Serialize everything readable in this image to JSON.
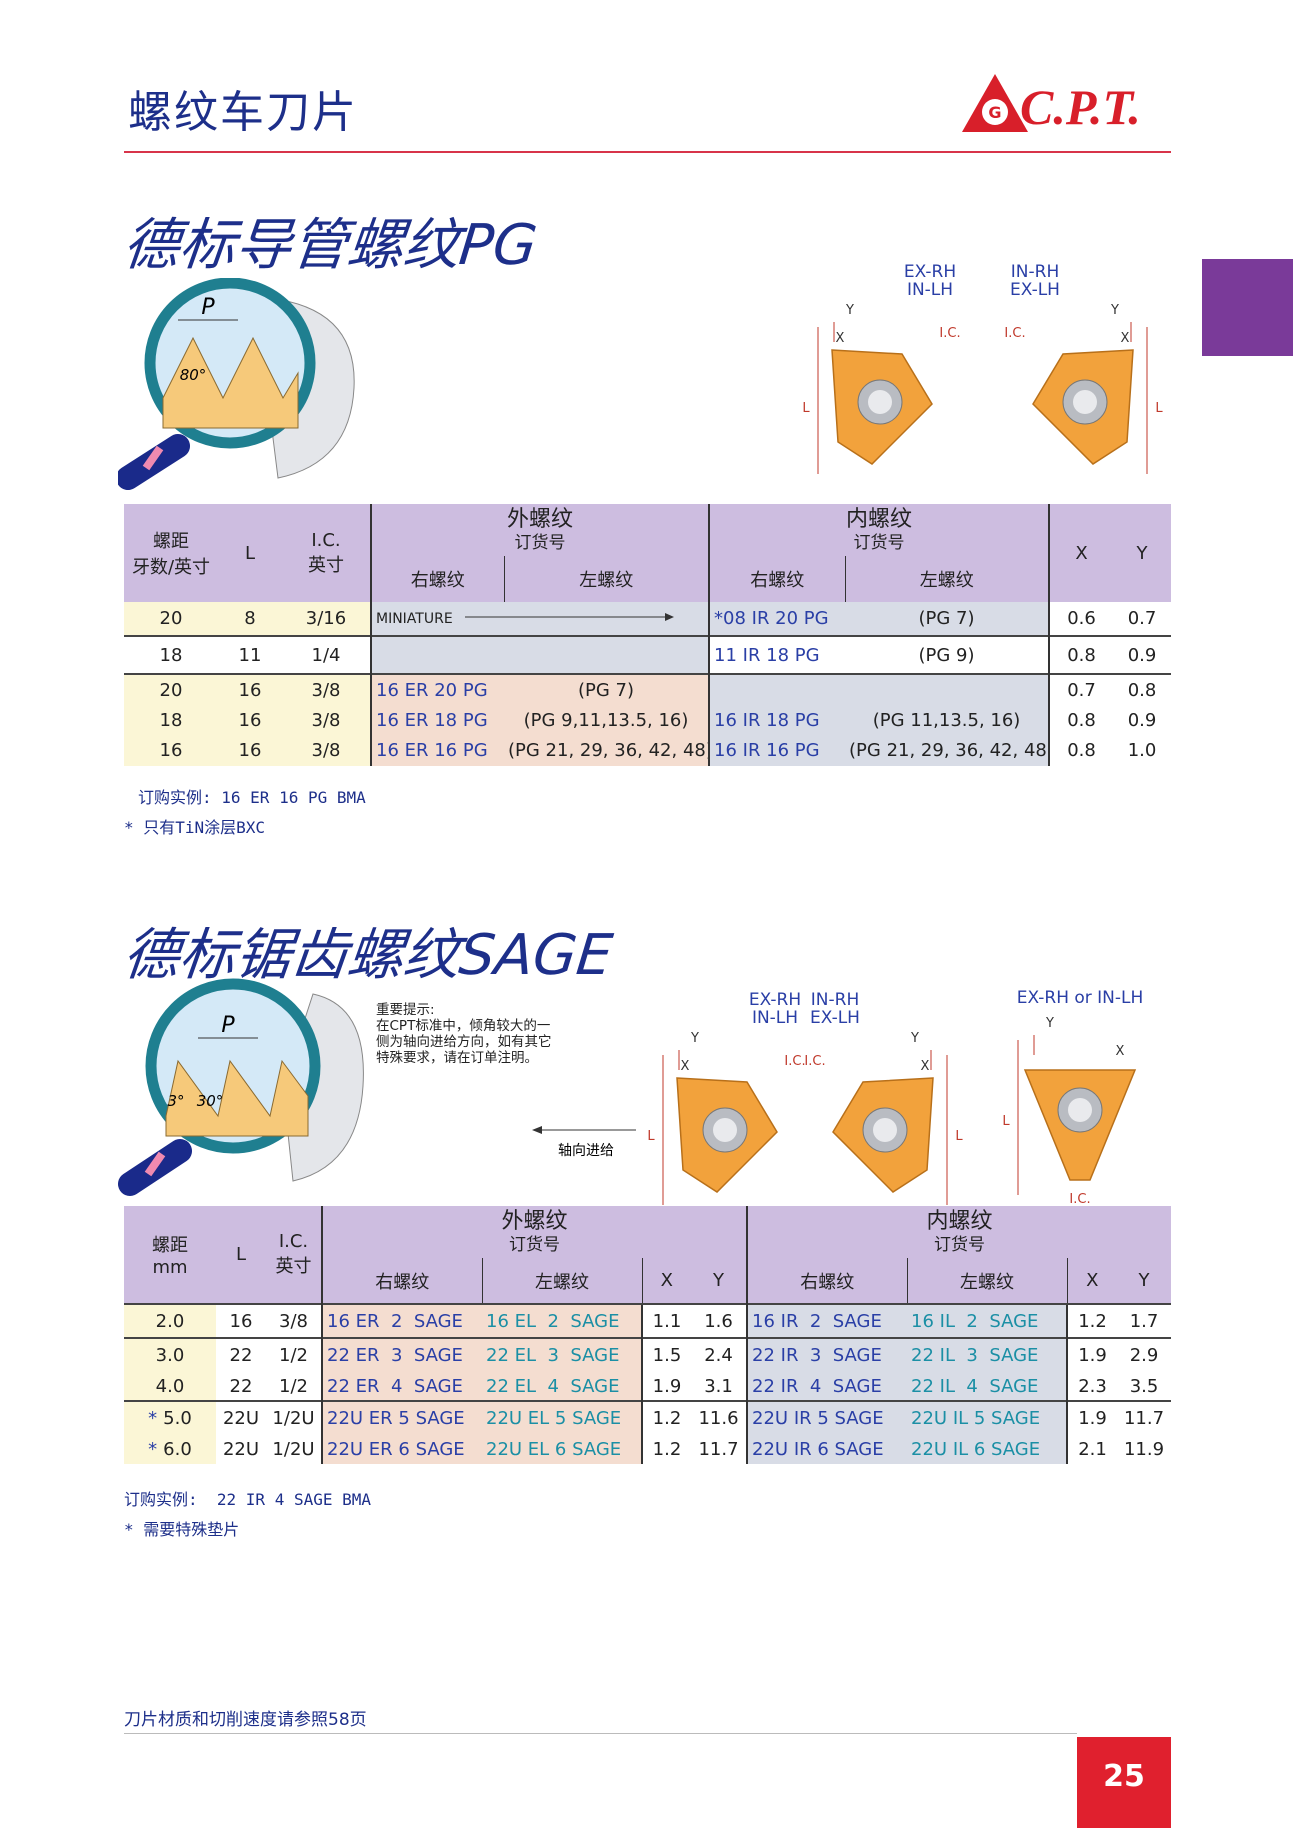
{
  "header": {
    "title": "螺纹车刀片",
    "brand": "C.P.T."
  },
  "pg": {
    "title": "德标导管螺纹PG",
    "illustration": {
      "pitch": "P",
      "angle": "80°"
    },
    "inserts": [
      {
        "hand": [
          "EX-RH",
          "IN-LH"
        ],
        "y": "Y",
        "x": "X",
        "l": "L",
        "ic": "I.C."
      },
      {
        "hand": [
          "IN-RH",
          "EX-LH"
        ],
        "y": "Y",
        "x": "X",
        "l": "L",
        "ic": "I.C."
      }
    ],
    "table": {
      "head": {
        "pitch": [
          "螺距",
          "牙数/英寸"
        ],
        "l": "L",
        "ic": [
          "I.C.",
          "英寸"
        ],
        "ext": "外螺纹",
        "ext_order": "订货号",
        "ext_rh": "右螺纹",
        "ext_lh": "左螺纹",
        "int": "内螺纹",
        "int_order": "订货号",
        "int_rh": "右螺纹",
        "int_lh": "左螺纹",
        "x": "X",
        "y": "Y"
      },
      "rows": [
        {
          "pitch": "20",
          "l": "8",
          "ic": "3/16",
          "ext": "MINIATURE",
          "int_rh": "*08 IR 20 PG",
          "int_lh": "(PG 7)",
          "x": "0.6",
          "y": "0.7"
        },
        {
          "pitch": "18",
          "l": "11",
          "ic": "1/4",
          "int_rh": "11 IR 18 PG",
          "int_lh": "(PG 9)",
          "x": "0.8",
          "y": "0.9"
        },
        {
          "pitch": "20",
          "l": "16",
          "ic": "3/8",
          "ext_rh": "16 ER 20 PG",
          "ext_lh": "(PG 7)",
          "x": "0.7",
          "y": "0.8"
        },
        {
          "pitch": "18",
          "l": "16",
          "ic": "3/8",
          "ext_rh": "16 ER 18 PG",
          "ext_lh": "(PG 9,11,13.5, 16)",
          "int_rh": "16 IR 18 PG",
          "int_lh": "(PG 11,13.5, 16)",
          "x": "0.8",
          "y": "0.9"
        },
        {
          "pitch": "16",
          "l": "16",
          "ic": "3/8",
          "ext_rh": "16 ER 16 PG",
          "ext_lh": "(PG 21, 29, 36, 42, 48)",
          "int_rh": "16 IR 16 PG",
          "int_lh": "(PG 21, 29, 36, 42, 48)",
          "x": "0.8",
          "y": "1.0"
        }
      ]
    },
    "notes": [
      "订购实例: 16 ER 16 PG BMA",
      "* 只有TiN涂层BXC"
    ]
  },
  "sage": {
    "title": "德标锯齿螺纹SAGE",
    "illustration": {
      "pitch": "P",
      "angle1": "3°",
      "angle2": "30°"
    },
    "tip": {
      "title": "重要提示:",
      "lines": [
        "在CPT标准中，倾角较大的一",
        "侧为轴向进给方向，如有其它",
        "特殊要求，请在订单注明。"
      ],
      "feed": "轴向进给"
    },
    "inserts": [
      {
        "hand": [
          "EX-RH",
          "IN-LH"
        ],
        "y": "Y",
        "x": "X",
        "l": "L",
        "ic": "I.C."
      },
      {
        "hand": [
          "IN-RH",
          "EX-LH"
        ],
        "y": "Y",
        "x": "X",
        "l": "L",
        "ic": "I.C."
      },
      {
        "hand": [
          "EX-RH or IN-LH"
        ],
        "y": "Y",
        "x": "X",
        "l": "L",
        "ic": "I.C."
      }
    ],
    "table": {
      "head": {
        "pitch": [
          "螺距",
          "mm"
        ],
        "l": "L",
        "ic": [
          "I.C.",
          "英寸"
        ],
        "ext": "外螺纹",
        "ext_order": "订货号",
        "ext_rh": "右螺纹",
        "ext_lh": "左螺纹",
        "ext_x": "X",
        "ext_y": "Y",
        "int": "内螺纹",
        "int_order": "订货号",
        "int_rh": "右螺纹",
        "int_lh": "左螺纹",
        "int_x": "X",
        "int_y": "Y"
      },
      "rows": [
        {
          "pitch": "2.0",
          "l": "16",
          "ic": "3/8",
          "ext_rh": "16 ER  2  SAGE",
          "ext_lh": "16 EL  2  SAGE",
          "ext_x": "1.1",
          "ext_y": "1.6",
          "int_rh": "16 IR  2  SAGE",
          "int_lh": "16 IL  2  SAGE",
          "int_x": "1.2",
          "int_y": "1.7"
        },
        {
          "pitch": "3.0",
          "l": "22",
          "ic": "1/2",
          "ext_rh": "22 ER  3  SAGE",
          "ext_lh": "22 EL  3  SAGE",
          "ext_x": "1.5",
          "ext_y": "2.4",
          "int_rh": "22 IR  3  SAGE",
          "int_lh": "22 IL  3  SAGE",
          "int_x": "1.9",
          "int_y": "2.9"
        },
        {
          "pitch": "4.0",
          "l": "22",
          "ic": "1/2",
          "ext_rh": "22 ER  4  SAGE",
          "ext_lh": "22 EL  4  SAGE",
          "ext_x": "1.9",
          "ext_y": "3.1",
          "int_rh": "22 IR  4  SAGE",
          "int_lh": "22 IL  4  SAGE",
          "int_x": "2.3",
          "int_y": "3.5"
        },
        {
          "mark": "*",
          "pitch": "5.0",
          "l": "22U",
          "ic": "1/2U",
          "ext_rh": "22U ER 5 SAGE",
          "ext_lh": "22U EL 5 SAGE",
          "ext_x": "1.2",
          "ext_y": "11.6",
          "int_rh": "22U IR 5 SAGE",
          "int_lh": "22U IL 5 SAGE",
          "int_x": "1.9",
          "int_y": "11.7"
        },
        {
          "mark": "*",
          "pitch": "6.0",
          "l": "22U",
          "ic": "1/2U",
          "ext_rh": "22U ER 6 SAGE",
          "ext_lh": "22U EL 6 SAGE",
          "ext_x": "1.2",
          "ext_y": "11.7",
          "int_rh": "22U IR 6 SAGE",
          "int_lh": "22U IL 6 SAGE",
          "int_x": "2.1",
          "int_y": "11.9"
        }
      ]
    },
    "notes": [
      "订购实例:  22 IR 4 SAGE BMA",
      "* 需要特殊垫片"
    ]
  },
  "footer": {
    "text": "刀片材质和切削速度请参照58页",
    "page": "25"
  }
}
